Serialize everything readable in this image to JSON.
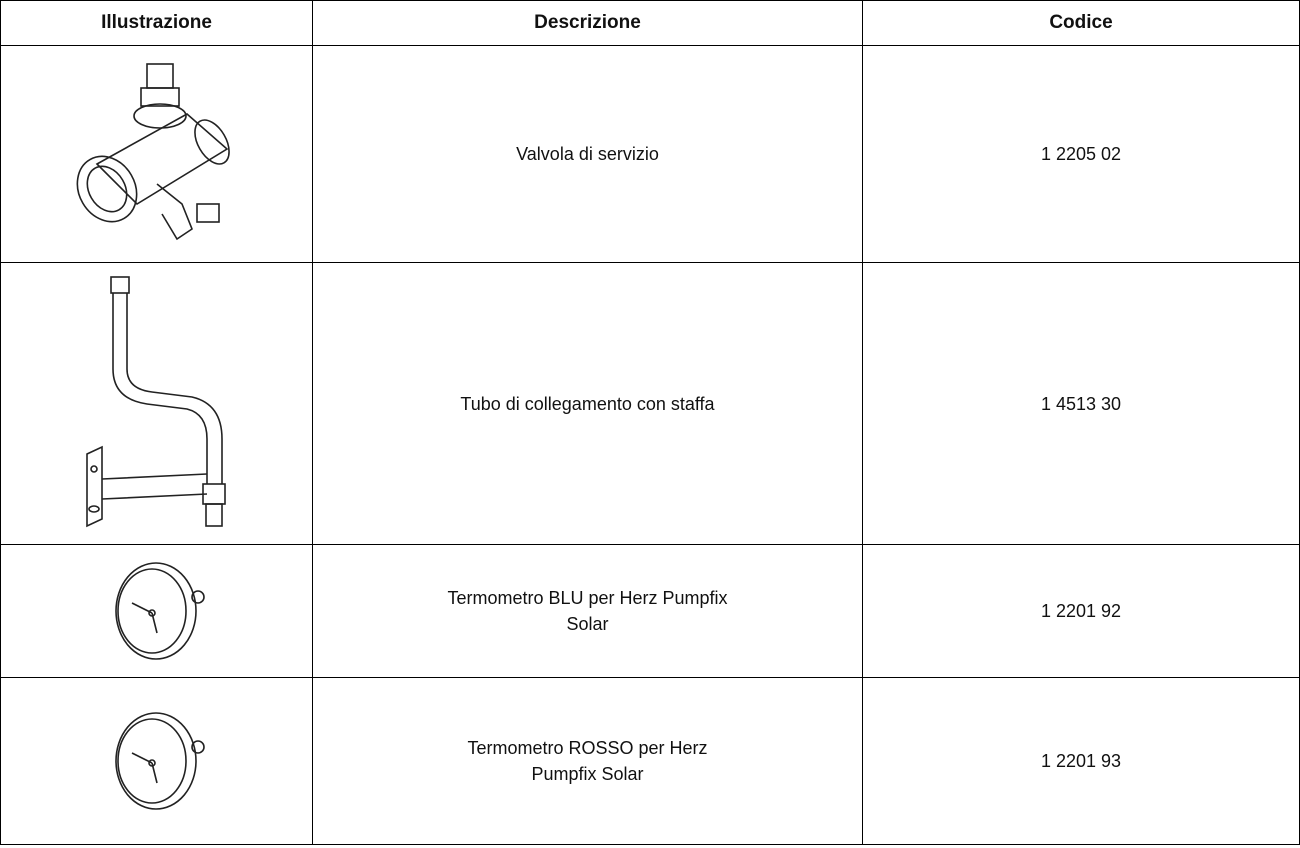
{
  "table": {
    "header": [
      "Illustrazione",
      "Descrizione",
      "Codice"
    ],
    "rows": [
      [
        "Valvola di servizio",
        "1 2205 02"
      ],
      [
        "Tubo di collegamento con staffa",
        "1 4513 30"
      ],
      [
        "Termometro BLU per Herz Pumpfix Solar",
        "1 2201 92"
      ],
      [
        "Termometro ROSSO per Herz Pumpfix Solar",
        "1 2201 93"
      ]
    ]
  }
}
